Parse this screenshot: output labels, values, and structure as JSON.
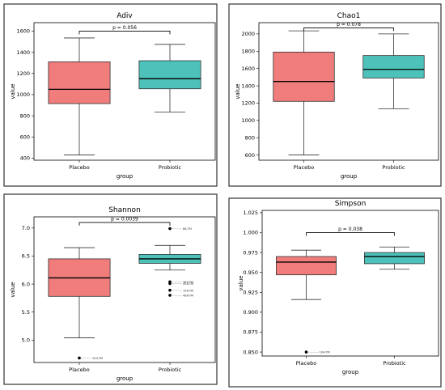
{
  "colors": {
    "Placebo": "#F07C7C",
    "Probiotic": "#4CC2BA",
    "frame": "#333333"
  },
  "chart_data": [
    {
      "type": "boxplot",
      "title": "Adiv",
      "xlabel": "group",
      "ylabel": "value",
      "categories": [
        "Placebo",
        "Probiotic"
      ],
      "ylim": [
        380,
        1680
      ],
      "yticks": [
        400,
        600,
        800,
        1000,
        1200,
        1400,
        1600
      ],
      "boxes": [
        {
          "group": "Placebo",
          "whisker_low": 430,
          "q1": 915,
          "median": 1050,
          "q3": 1310,
          "whisker_high": 1535
        },
        {
          "group": "Probiotic",
          "whisker_low": 835,
          "q1": 1055,
          "median": 1150,
          "q3": 1320,
          "whisker_high": 1475
        }
      ],
      "outliers": [],
      "significance": {
        "label": "p = 0.056",
        "y": 1600
      }
    },
    {
      "type": "boxplot",
      "title": "Chao1",
      "xlabel": "group",
      "ylabel": "value",
      "categories": [
        "Placebo",
        "Probiotic"
      ],
      "ylim": [
        540,
        2130
      ],
      "yticks": [
        600,
        800,
        1000,
        1200,
        1400,
        1600,
        1800,
        2000
      ],
      "boxes": [
        {
          "group": "Placebo",
          "whisker_low": 600,
          "q1": 1220,
          "median": 1450,
          "q3": 1790,
          "whisker_high": 2035
        },
        {
          "group": "Probiotic",
          "whisker_low": 1135,
          "q1": 1490,
          "median": 1590,
          "q3": 1750,
          "whisker_high": 2000
        }
      ],
      "outliers": [],
      "significance": {
        "label": "p = 0.078",
        "y": 2070
      }
    },
    {
      "type": "boxplot",
      "title": "Shannon",
      "xlabel": "group",
      "ylabel": "value",
      "categories": [
        "Placebo",
        "Probiotic"
      ],
      "ylim": [
        4.6,
        7.2
      ],
      "yticks": [
        5.0,
        5.5,
        6.0,
        6.5,
        7.0
      ],
      "yticks_labels": [
        "5.0",
        "5.5",
        "6.0",
        "6.5",
        "7.0"
      ],
      "boxes": [
        {
          "group": "Placebo",
          "whisker_low": 5.04,
          "q1": 5.78,
          "median": 6.11,
          "q3": 6.45,
          "whisker_high": 6.65
        },
        {
          "group": "Probiotic",
          "whisker_low": 6.25,
          "q1": 6.37,
          "median": 6.45,
          "q3": 6.53,
          "whisker_high": 6.69
        }
      ],
      "outliers": [
        {
          "group": "Placebo",
          "value": 4.68,
          "label": "104-TM"
        },
        {
          "group": "Probiotic",
          "value": 6.99,
          "label": "68-TM"
        },
        {
          "group": "Probiotic",
          "value": 6.04,
          "label": "369-TM"
        },
        {
          "group": "Probiotic",
          "value": 6.01,
          "label": "458-TM"
        },
        {
          "group": "Probiotic",
          "value": 5.89,
          "label": "158-TM"
        },
        {
          "group": "Probiotic",
          "value": 5.8,
          "label": "486-TM"
        }
      ],
      "significance": {
        "label": "p = 0.0039",
        "y": 7.1
      }
    },
    {
      "type": "boxplot",
      "title": "Simpson",
      "xlabel": "group",
      "ylabel": "value",
      "categories": [
        "Placebo",
        "Probiotic"
      ],
      "ylim": [
        0.845,
        1.028
      ],
      "yticks": [
        0.85,
        0.875,
        0.9,
        0.925,
        0.95,
        0.975,
        1.0,
        1.025
      ],
      "yticks_labels": [
        "0.850",
        "0.875",
        "0.900",
        "0.925",
        "0.950",
        "0.975",
        "1.000",
        "1.025"
      ],
      "boxes": [
        {
          "group": "Placebo",
          "whisker_low": 0.916,
          "q1": 0.947,
          "median": 0.963,
          "q3": 0.97,
          "whisker_high": 0.978
        },
        {
          "group": "Probiotic",
          "whisker_low": 0.954,
          "q1": 0.961,
          "median": 0.97,
          "q3": 0.975,
          "whisker_high": 0.982
        }
      ],
      "outliers": [
        {
          "group": "Placebo",
          "value": 0.85,
          "label": "104-TM"
        }
      ],
      "significance": {
        "label": "p = 0.038",
        "y": 1.0
      }
    }
  ]
}
